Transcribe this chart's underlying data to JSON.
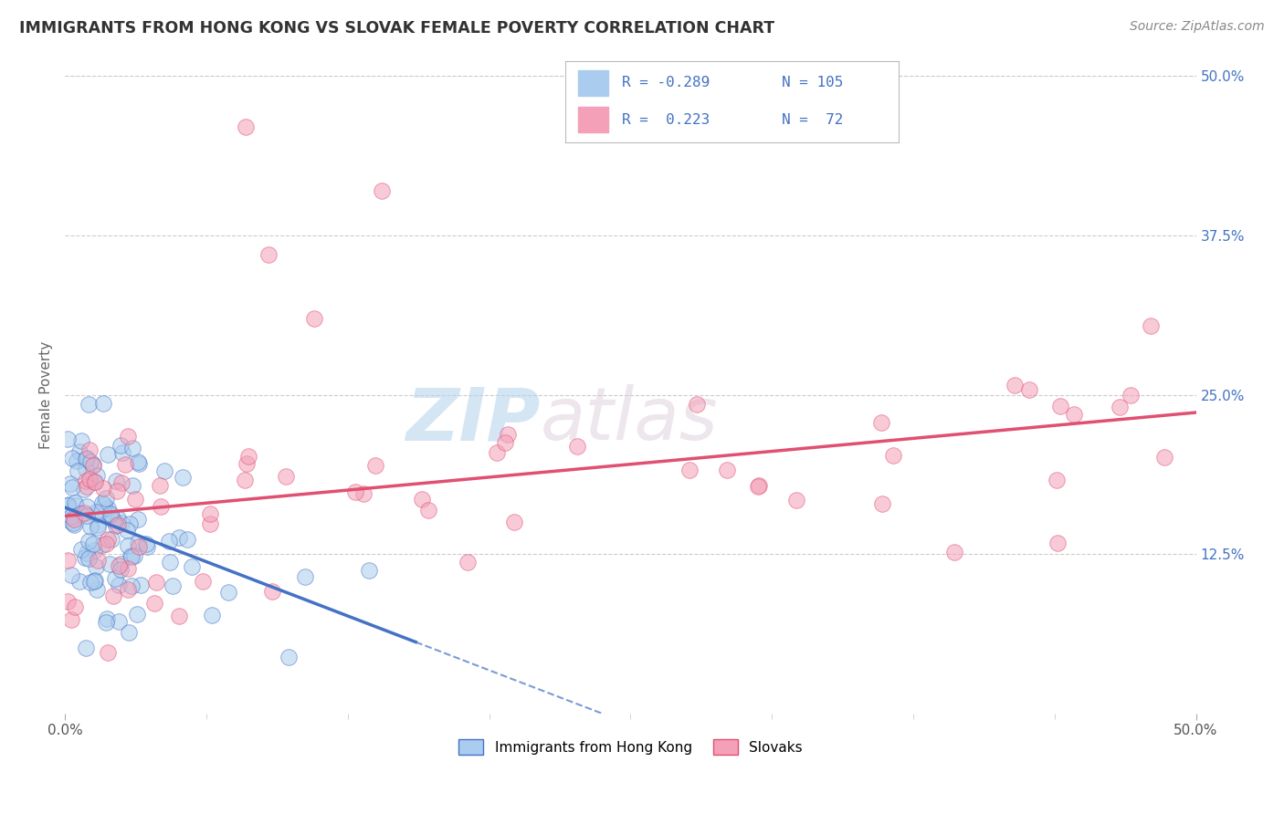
{
  "title": "IMMIGRANTS FROM HONG KONG VS SLOVAK FEMALE POVERTY CORRELATION CHART",
  "source_text": "Source: ZipAtlas.com",
  "ylabel": "Female Poverty",
  "x_min": 0.0,
  "x_max": 0.5,
  "y_min": 0.0,
  "y_max": 0.5,
  "x_tick_labels": [
    "0.0%",
    "50.0%"
  ],
  "y_tick_labels": [
    "12.5%",
    "25.0%",
    "37.5%",
    "50.0%"
  ],
  "y_tick_positions": [
    0.125,
    0.25,
    0.375,
    0.5
  ],
  "color_hk": "#aaccee",
  "color_sk": "#f4a0b8",
  "color_hk_line": "#4472c4",
  "color_sk_line": "#e05070",
  "watermark": "ZIPatlas",
  "watermark_color": "#cce0f5",
  "bg_color": "#ffffff",
  "grid_color": "#cccccc",
  "hk_slope": -0.8,
  "hk_intercept": 0.165,
  "sk_slope": 0.18,
  "sk_intercept": 0.145
}
